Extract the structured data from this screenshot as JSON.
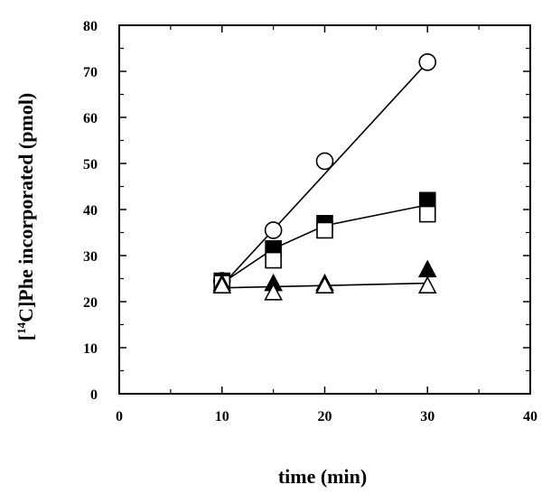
{
  "chart_data": {
    "type": "scatter",
    "title": "",
    "xlabel": "time (min)",
    "ylabel": {
      "pre": "[",
      "sup": "14",
      "post": "C]Phe incorporated (pmol)"
    },
    "xlim": [
      0,
      40
    ],
    "ylim": [
      0,
      80
    ],
    "x_ticks": [
      0,
      10,
      20,
      30,
      40
    ],
    "y_ticks": [
      0,
      10,
      20,
      30,
      40,
      50,
      60,
      70,
      80
    ],
    "grid": false,
    "legend": "none",
    "series": [
      {
        "marker": "circle-open",
        "points": [
          [
            10,
            24.5
          ],
          [
            15,
            35.5
          ],
          [
            20,
            50.5
          ],
          [
            30,
            72
          ]
        ],
        "fit": [
          [
            10,
            23.5
          ],
          [
            30,
            72
          ]
        ]
      },
      {
        "marker": "square-filled",
        "points": [
          [
            10,
            24.5
          ],
          [
            15,
            31.5
          ],
          [
            20,
            37
          ],
          [
            30,
            42
          ]
        ],
        "fit": [
          [
            10,
            24
          ],
          [
            15,
            31.5
          ],
          [
            20,
            36.5
          ],
          [
            30,
            41
          ]
        ]
      },
      {
        "marker": "square-open",
        "points": [
          [
            10,
            24
          ],
          [
            15,
            29
          ],
          [
            20,
            35.5
          ],
          [
            30,
            39
          ]
        ],
        "fit": null
      },
      {
        "marker": "triangle-filled",
        "points": [
          [
            10,
            24
          ],
          [
            15,
            24
          ],
          [
            20,
            24
          ],
          [
            30,
            27
          ]
        ],
        "fit": [
          [
            10,
            23
          ],
          [
            30,
            24
          ]
        ]
      },
      {
        "marker": "triangle-open",
        "points": [
          [
            10,
            23.5
          ],
          [
            15,
            22
          ],
          [
            20,
            23.5
          ],
          [
            30,
            23.5
          ]
        ],
        "fit": null
      }
    ]
  }
}
